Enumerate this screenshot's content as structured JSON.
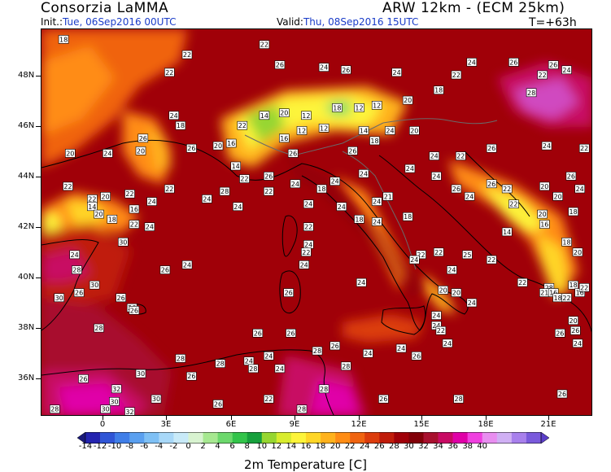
{
  "header": {
    "title": "Consorzia LaMMA",
    "model": "ARW 12km - (ECM 25km)",
    "init_label": "Init.:",
    "init_value": "Tue, 06Sep2016 00UTC",
    "valid_label": "Valid:",
    "valid_value": "Thu, 08Sep2016 15UTC",
    "step": "T=+63h"
  },
  "map": {
    "lat_labels": [
      "48N",
      "46N",
      "44N",
      "42N",
      "40N",
      "38N",
      "36N"
    ],
    "lon_labels": [
      "0",
      "3E",
      "6E",
      "9E",
      "12E",
      "15E",
      "18E",
      "21E"
    ],
    "lat_range": [
      34.6,
      49.9
    ],
    "lon_range": [
      -2.8,
      22.2
    ],
    "values": [
      {
        "lat": 49.5,
        "lon": -1.8,
        "v": 18
      },
      {
        "lat": 48.9,
        "lon": 3.8,
        "v": 22
      },
      {
        "lat": 49.3,
        "lon": 7.3,
        "v": 22
      },
      {
        "lat": 48.2,
        "lon": 3.0,
        "v": 22
      },
      {
        "lat": 48.5,
        "lon": 8.0,
        "v": 26
      },
      {
        "lat": 48.4,
        "lon": 10.0,
        "v": 24
      },
      {
        "lat": 48.3,
        "lon": 11.0,
        "v": 26
      },
      {
        "lat": 48.2,
        "lon": 13.3,
        "v": 24
      },
      {
        "lat": 48.6,
        "lon": 16.7,
        "v": 24
      },
      {
        "lat": 48.1,
        "lon": 16.0,
        "v": 22
      },
      {
        "lat": 48.6,
        "lon": 18.6,
        "v": 26
      },
      {
        "lat": 48.3,
        "lon": 21.0,
        "v": 24
      },
      {
        "lat": 48.1,
        "lon": 19.9,
        "v": 22
      },
      {
        "lat": 48.5,
        "lon": 20.4,
        "v": 26
      },
      {
        "lat": 47.4,
        "lon": 19.4,
        "v": 28
      },
      {
        "lat": 47.5,
        "lon": 15.2,
        "v": 18
      },
      {
        "lat": 47.1,
        "lon": 13.8,
        "v": 20
      },
      {
        "lat": 46.9,
        "lon": 12.4,
        "v": 12
      },
      {
        "lat": 46.8,
        "lon": 11.6,
        "v": 12
      },
      {
        "lat": 46.8,
        "lon": 10.6,
        "v": 18
      },
      {
        "lat": 46.5,
        "lon": 9.2,
        "v": 12
      },
      {
        "lat": 46.6,
        "lon": 8.2,
        "v": 20
      },
      {
        "lat": 46.5,
        "lon": 7.3,
        "v": 14
      },
      {
        "lat": 46.1,
        "lon": 6.3,
        "v": 22
      },
      {
        "lat": 46.5,
        "lon": 3.2,
        "v": 24
      },
      {
        "lat": 46.1,
        "lon": 3.5,
        "v": 18
      },
      {
        "lat": 45.6,
        "lon": 1.8,
        "v": 26
      },
      {
        "lat": 45.0,
        "lon": -1.5,
        "v": 20
      },
      {
        "lat": 45.0,
        "lon": 0.2,
        "v": 24
      },
      {
        "lat": 45.1,
        "lon": 1.7,
        "v": 20
      },
      {
        "lat": 45.2,
        "lon": 4.0,
        "v": 26
      },
      {
        "lat": 45.3,
        "lon": 5.2,
        "v": 20
      },
      {
        "lat": 45.4,
        "lon": 5.8,
        "v": 16
      },
      {
        "lat": 45.6,
        "lon": 8.2,
        "v": 16
      },
      {
        "lat": 45.9,
        "lon": 9.0,
        "v": 12
      },
      {
        "lat": 46.0,
        "lon": 10.0,
        "v": 12
      },
      {
        "lat": 45.9,
        "lon": 11.8,
        "v": 14
      },
      {
        "lat": 45.5,
        "lon": 12.3,
        "v": 18
      },
      {
        "lat": 45.9,
        "lon": 13.0,
        "v": 24
      },
      {
        "lat": 45.9,
        "lon": 14.1,
        "v": 20
      },
      {
        "lat": 45.0,
        "lon": 8.6,
        "v": 26
      },
      {
        "lat": 45.1,
        "lon": 11.3,
        "v": 26
      },
      {
        "lat": 44.9,
        "lon": 15.0,
        "v": 24
      },
      {
        "lat": 44.9,
        "lon": 16.2,
        "v": 22
      },
      {
        "lat": 45.2,
        "lon": 17.6,
        "v": 26
      },
      {
        "lat": 45.3,
        "lon": 20.1,
        "v": 24
      },
      {
        "lat": 45.2,
        "lon": 21.8,
        "v": 22
      },
      {
        "lat": 44.5,
        "lon": 6.0,
        "v": 14
      },
      {
        "lat": 44.0,
        "lon": 6.4,
        "v": 22
      },
      {
        "lat": 44.1,
        "lon": 7.5,
        "v": 26
      },
      {
        "lat": 43.8,
        "lon": 8.7,
        "v": 24
      },
      {
        "lat": 43.9,
        "lon": 10.5,
        "v": 24
      },
      {
        "lat": 43.6,
        "lon": 9.9,
        "v": 18
      },
      {
        "lat": 44.2,
        "lon": 11.8,
        "v": 24
      },
      {
        "lat": 43.5,
        "lon": 7.5,
        "v": 22
      },
      {
        "lat": 43.5,
        "lon": 5.5,
        "v": 28
      },
      {
        "lat": 43.6,
        "lon": 3.0,
        "v": 22
      },
      {
        "lat": 43.4,
        "lon": 1.2,
        "v": 22
      },
      {
        "lat": 43.7,
        "lon": -1.6,
        "v": 22
      },
      {
        "lat": 43.2,
        "lon": -0.5,
        "v": 22
      },
      {
        "lat": 43.3,
        "lon": 0.1,
        "v": 20
      },
      {
        "lat": 42.9,
        "lon": -0.5,
        "v": 14
      },
      {
        "lat": 42.6,
        "lon": -0.2,
        "v": 20
      },
      {
        "lat": 42.4,
        "lon": 0.4,
        "v": 18
      },
      {
        "lat": 42.8,
        "lon": 1.4,
        "v": 16
      },
      {
        "lat": 42.2,
        "lon": 1.4,
        "v": 22
      },
      {
        "lat": 42.1,
        "lon": 2.1,
        "v": 24
      },
      {
        "lat": 43.1,
        "lon": 2.2,
        "v": 24
      },
      {
        "lat": 43.2,
        "lon": 4.7,
        "v": 24
      },
      {
        "lat": 42.9,
        "lon": 6.1,
        "v": 24
      },
      {
        "lat": 43.0,
        "lon": 9.3,
        "v": 24
      },
      {
        "lat": 42.9,
        "lon": 10.8,
        "v": 24
      },
      {
        "lat": 43.1,
        "lon": 12.4,
        "v": 24
      },
      {
        "lat": 43.3,
        "lon": 12.9,
        "v": 21
      },
      {
        "lat": 44.4,
        "lon": 13.9,
        "v": 24
      },
      {
        "lat": 44.1,
        "lon": 15.1,
        "v": 24
      },
      {
        "lat": 43.6,
        "lon": 16.0,
        "v": 26
      },
      {
        "lat": 43.3,
        "lon": 16.6,
        "v": 24
      },
      {
        "lat": 43.8,
        "lon": 17.6,
        "v": 26
      },
      {
        "lat": 43.6,
        "lon": 18.3,
        "v": 22
      },
      {
        "lat": 43.7,
        "lon": 20.0,
        "v": 20
      },
      {
        "lat": 43.6,
        "lon": 21.6,
        "v": 24
      },
      {
        "lat": 43.3,
        "lon": 20.6,
        "v": 20
      },
      {
        "lat": 44.1,
        "lon": 21.2,
        "v": 26
      },
      {
        "lat": 43.0,
        "lon": 18.6,
        "v": 22
      },
      {
        "lat": 42.6,
        "lon": 19.9,
        "v": 20
      },
      {
        "lat": 42.7,
        "lon": 21.3,
        "v": 18
      },
      {
        "lat": 42.2,
        "lon": 20.0,
        "v": 16
      },
      {
        "lat": 41.9,
        "lon": 18.3,
        "v": 14
      },
      {
        "lat": 42.3,
        "lon": 12.4,
        "v": 24
      },
      {
        "lat": 42.4,
        "lon": 11.6,
        "v": 18
      },
      {
        "lat": 42.5,
        "lon": 13.8,
        "v": 18
      },
      {
        "lat": 42.1,
        "lon": 9.3,
        "v": 22
      },
      {
        "lat": 41.4,
        "lon": 9.3,
        "v": 24
      },
      {
        "lat": 41.1,
        "lon": 9.2,
        "v": 22
      },
      {
        "lat": 40.6,
        "lon": 9.1,
        "v": 24
      },
      {
        "lat": 41.0,
        "lon": 14.4,
        "v": 22
      },
      {
        "lat": 41.1,
        "lon": 15.2,
        "v": 22
      },
      {
        "lat": 40.8,
        "lon": 14.1,
        "v": 24
      },
      {
        "lat": 41.0,
        "lon": 16.5,
        "v": 25
      },
      {
        "lat": 40.8,
        "lon": 17.6,
        "v": 22
      },
      {
        "lat": 41.5,
        "lon": 21.0,
        "v": 18
      },
      {
        "lat": 41.1,
        "lon": 21.5,
        "v": 20
      },
      {
        "lat": 40.4,
        "lon": 15.8,
        "v": 24
      },
      {
        "lat": 39.7,
        "lon": 20.2,
        "v": 28
      },
      {
        "lat": 39.9,
        "lon": 19.0,
        "v": 22
      },
      {
        "lat": 39.5,
        "lon": 20.0,
        "v": 21
      },
      {
        "lat": 39.5,
        "lon": 20.4,
        "v": 16
      },
      {
        "lat": 39.3,
        "lon": 20.6,
        "v": 18
      },
      {
        "lat": 39.8,
        "lon": 21.3,
        "v": 18
      },
      {
        "lat": 39.5,
        "lon": 21.6,
        "v": 16
      },
      {
        "lat": 39.7,
        "lon": 21.8,
        "v": 22
      },
      {
        "lat": 39.3,
        "lon": 21.0,
        "v": 22
      },
      {
        "lat": 38.4,
        "lon": 21.3,
        "v": 20
      },
      {
        "lat": 37.9,
        "lon": 20.7,
        "v": 26
      },
      {
        "lat": 38.0,
        "lon": 21.4,
        "v": 26
      },
      {
        "lat": 37.5,
        "lon": 21.5,
        "v": 24
      },
      {
        "lat": 39.6,
        "lon": 15.4,
        "v": 20
      },
      {
        "lat": 39.5,
        "lon": 16.0,
        "v": 20
      },
      {
        "lat": 39.1,
        "lon": 16.7,
        "v": 24
      },
      {
        "lat": 38.6,
        "lon": 15.1,
        "v": 24
      },
      {
        "lat": 38.2,
        "lon": 15.1,
        "v": 24
      },
      {
        "lat": 39.9,
        "lon": 11.7,
        "v": 24
      },
      {
        "lat": 40.6,
        "lon": 3.8,
        "v": 24
      },
      {
        "lat": 40.4,
        "lon": 2.8,
        "v": 26
      },
      {
        "lat": 40.4,
        "lon": -1.2,
        "v": 28
      },
      {
        "lat": 41.0,
        "lon": -1.3,
        "v": 24
      },
      {
        "lat": 41.5,
        "lon": 0.9,
        "v": 30
      },
      {
        "lat": 39.8,
        "lon": -0.4,
        "v": 30
      },
      {
        "lat": 39.5,
        "lon": -1.1,
        "v": 26
      },
      {
        "lat": 39.3,
        "lon": -2.0,
        "v": 30
      },
      {
        "lat": 39.3,
        "lon": 0.8,
        "v": 26
      },
      {
        "lat": 38.9,
        "lon": 1.3,
        "v": 26
      },
      {
        "lat": 38.8,
        "lon": 1.4,
        "v": 26
      },
      {
        "lat": 38.1,
        "lon": -0.2,
        "v": 28
      },
      {
        "lat": 39.5,
        "lon": 8.4,
        "v": 26
      },
      {
        "lat": 37.9,
        "lon": 7.0,
        "v": 26
      },
      {
        "lat": 37.9,
        "lon": 8.5,
        "v": 26
      },
      {
        "lat": 37.4,
        "lon": 10.5,
        "v": 26
      },
      {
        "lat": 37.0,
        "lon": 7.5,
        "v": 24
      },
      {
        "lat": 37.2,
        "lon": 9.7,
        "v": 28
      },
      {
        "lat": 36.9,
        "lon": 3.5,
        "v": 28
      },
      {
        "lat": 36.7,
        "lon": 5.3,
        "v": 28
      },
      {
        "lat": 36.3,
        "lon": 1.7,
        "v": 30
      },
      {
        "lat": 36.2,
        "lon": 4.0,
        "v": 26
      },
      {
        "lat": 36.8,
        "lon": 6.6,
        "v": 24
      },
      {
        "lat": 36.5,
        "lon": 6.8,
        "v": 28
      },
      {
        "lat": 36.5,
        "lon": 8.0,
        "v": 24
      },
      {
        "lat": 36.6,
        "lon": 11.0,
        "v": 28
      },
      {
        "lat": 37.1,
        "lon": 12.0,
        "v": 24
      },
      {
        "lat": 37.3,
        "lon": 13.5,
        "v": 24
      },
      {
        "lat": 37.5,
        "lon": 15.6,
        "v": 24
      },
      {
        "lat": 38.0,
        "lon": 15.3,
        "v": 22
      },
      {
        "lat": 37.0,
        "lon": 14.2,
        "v": 26
      },
      {
        "lat": 36.1,
        "lon": -0.9,
        "v": 26
      },
      {
        "lat": 35.7,
        "lon": 0.6,
        "v": 32
      },
      {
        "lat": 35.2,
        "lon": 0.5,
        "v": 30
      },
      {
        "lat": 35.3,
        "lon": 2.4,
        "v": 30
      },
      {
        "lat": 34.9,
        "lon": 0.1,
        "v": 30
      },
      {
        "lat": 34.8,
        "lon": 1.2,
        "v": 32
      },
      {
        "lat": 34.9,
        "lon": -2.2,
        "v": 28
      },
      {
        "lat": 35.1,
        "lon": 5.2,
        "v": 26
      },
      {
        "lat": 34.9,
        "lon": 9.0,
        "v": 28
      },
      {
        "lat": 35.3,
        "lon": 7.5,
        "v": 22
      },
      {
        "lat": 35.7,
        "lon": 10.0,
        "v": 28
      },
      {
        "lat": 35.3,
        "lon": 12.7,
        "v": 26
      },
      {
        "lat": 35.3,
        "lon": 16.1,
        "v": 28
      },
      {
        "lat": 35.5,
        "lon": 20.8,
        "v": 26
      }
    ]
  },
  "colorbar": {
    "colors": [
      "#1a1a7a",
      "#2424b0",
      "#2f55d6",
      "#3f7ee8",
      "#5aa0f0",
      "#7ec0f5",
      "#a8d8f8",
      "#c8eaf8",
      "#d8f3d0",
      "#a6e890",
      "#6cd86c",
      "#32c44a",
      "#16a03c",
      "#96d630",
      "#d8ec2e",
      "#fdf43a",
      "#ffd626",
      "#ffb21c",
      "#ff8c14",
      "#f06410",
      "#dc3c0c",
      "#c01c0a",
      "#a00008",
      "#820008",
      "#a8102e",
      "#c80a64",
      "#e000a8",
      "#f040e0",
      "#e88ef0",
      "#d0b0f4",
      "#a880ec",
      "#7a5adc",
      "#5a3ec8"
    ],
    "ticks": [
      "-14",
      "-12",
      "-10",
      "-8",
      "-6",
      "-4",
      "-2",
      "0",
      "2",
      "4",
      "6",
      "8",
      "10",
      "12",
      "14",
      "16",
      "18",
      "20",
      "22",
      "24",
      "26",
      "28",
      "30",
      "32",
      "34",
      "36",
      "38",
      "40"
    ],
    "title": "2m Temperature [C]"
  }
}
